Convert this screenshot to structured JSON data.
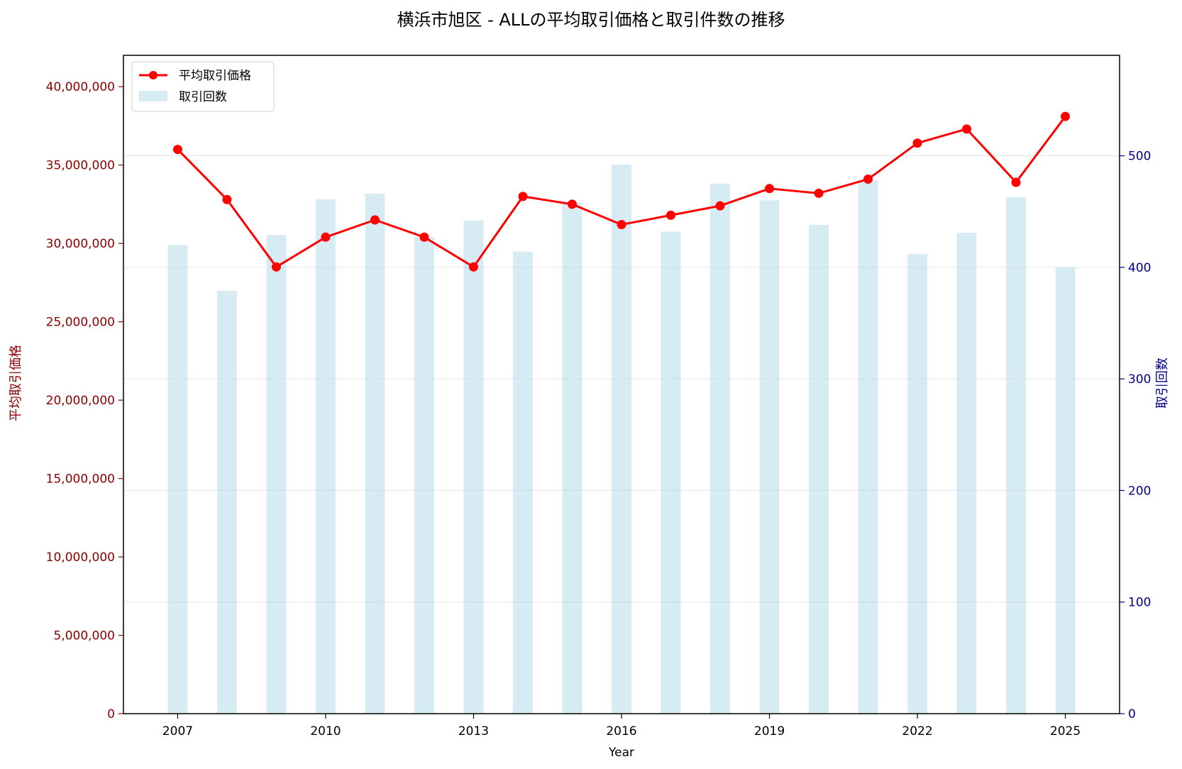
{
  "chart_data": {
    "type": "bar",
    "title": "横浜市旭区 - ALLの平均取引価格と取引件数の推移",
    "xlabel": "Year",
    "ylabel_left": "平均取引価格",
    "ylabel_right": "取引回数",
    "x": [
      2007,
      2008,
      2009,
      2010,
      2011,
      2012,
      2013,
      2014,
      2015,
      2016,
      2017,
      2018,
      2019,
      2020,
      2021,
      2022,
      2023,
      2024,
      2025
    ],
    "xticks": [
      "2007",
      "2010",
      "2013",
      "2016",
      "2019",
      "2022",
      "2025"
    ],
    "xlim": [
      2005.9,
      2026.1
    ],
    "ylim_left": [
      0,
      42000000
    ],
    "ylim_right": [
      0,
      590
    ],
    "yticks_left": [
      "0",
      "5,000,000",
      "10,000,000",
      "15,000,000",
      "20,000,000",
      "25,000,000",
      "30,000,000",
      "35,000,000",
      "40,000,000"
    ],
    "yticks_right": [
      "0",
      "100",
      "200",
      "300",
      "400",
      "500"
    ],
    "series": [
      {
        "name": "平均取引価格",
        "kind": "line",
        "axis": "left",
        "color": "#ff0000",
        "values": [
          36000000,
          32800000,
          28500000,
          30400000,
          31500000,
          30400000,
          28500000,
          33000000,
          32500000,
          31200000,
          31800000,
          32400000,
          33500000,
          33200000,
          34100000,
          36400000,
          37300000,
          33900000,
          38100000
        ]
      },
      {
        "name": "取引回数",
        "kind": "bar",
        "axis": "right",
        "color": "#add8e6",
        "values": [
          420,
          379,
          429,
          461,
          466,
          427,
          442,
          414,
          458,
          492,
          432,
          475,
          460,
          438,
          478,
          412,
          431,
          463,
          400
        ]
      }
    ],
    "grid": "horizontal",
    "legend": "top-left",
    "left_axis_color": "#8b0000",
    "right_axis_color": "#00008b"
  }
}
